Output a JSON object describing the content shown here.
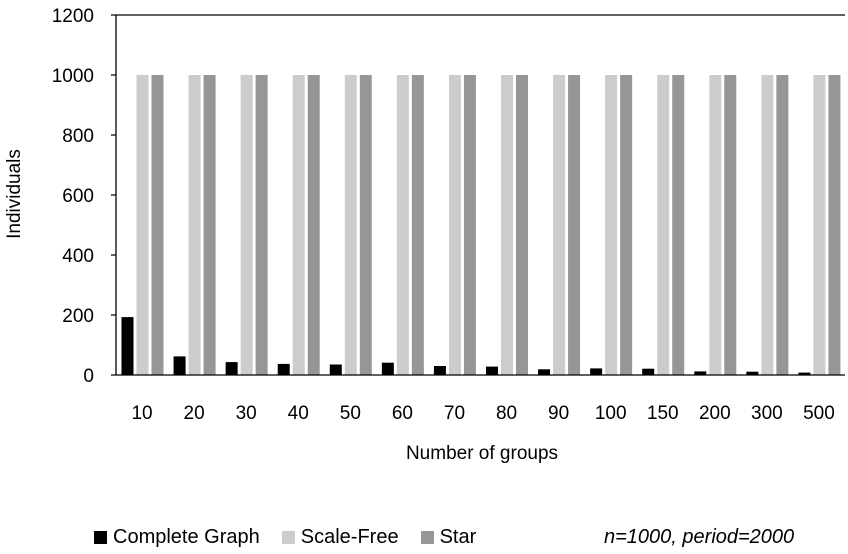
{
  "chart_data": {
    "type": "bar",
    "title": "",
    "xlabel": "Number of groups",
    "ylabel": "Individuals",
    "ylim": [
      0,
      1200
    ],
    "yticks": [
      0,
      200,
      400,
      600,
      800,
      1000,
      1200
    ],
    "grid": false,
    "legend_position": "bottom",
    "categories": [
      "10",
      "20",
      "30",
      "40",
      "50",
      "60",
      "70",
      "80",
      "90",
      "100",
      "150",
      "200",
      "300",
      "500"
    ],
    "series": [
      {
        "name": "Complete Graph",
        "color": "#000000",
        "values": [
          193,
          62,
          43,
          37,
          35,
          41,
          30,
          28,
          19,
          22,
          21,
          12,
          11,
          8
        ]
      },
      {
        "name": "Scale-Free",
        "color": "#cccccc",
        "values": [
          1000,
          1000,
          1000,
          1000,
          1000,
          1000,
          1000,
          1000,
          1000,
          1000,
          1000,
          1000,
          1000,
          1000
        ]
      },
      {
        "name": "Star",
        "color": "#969696",
        "values": [
          1000,
          1000,
          1000,
          1000,
          1000,
          1000,
          1000,
          1000,
          1000,
          1000,
          1000,
          1000,
          1000,
          1000
        ]
      }
    ],
    "annotation": "n=1000, period=2000"
  }
}
